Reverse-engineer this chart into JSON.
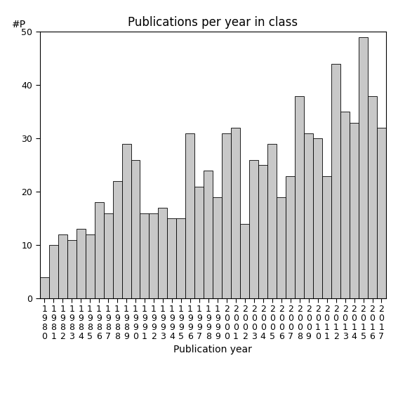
{
  "title": "Publications per year in class",
  "xlabel": "Publication year",
  "ylabel": "#P",
  "bar_color": "#c8c8c8",
  "edge_color": "#000000",
  "background_color": "#ffffff",
  "ylim": [
    0,
    50
  ],
  "yticks": [
    0,
    10,
    20,
    30,
    40,
    50
  ],
  "years": [
    1980,
    1981,
    1982,
    1983,
    1984,
    1985,
    1986,
    1987,
    1988,
    1989,
    1990,
    1991,
    1992,
    1993,
    1994,
    1995,
    1996,
    1997,
    1998,
    1999,
    2000,
    2001,
    2002,
    2003,
    2004,
    2005,
    2006,
    2007,
    2008,
    2009,
    2010,
    2011,
    2012,
    2013,
    2014,
    2015,
    2016,
    2017
  ],
  "values": [
    4,
    10,
    12,
    11,
    13,
    12,
    18,
    16,
    22,
    29,
    26,
    16,
    16,
    17,
    15,
    15,
    31,
    21,
    24,
    19,
    31,
    32,
    14,
    26,
    25,
    29,
    19,
    23,
    38,
    31,
    30,
    23,
    44,
    35,
    33,
    49,
    38,
    32
  ],
  "title_fontsize": 12,
  "label_fontsize": 10,
  "tick_fontsize": 9,
  "ylabel_fontsize": 10
}
